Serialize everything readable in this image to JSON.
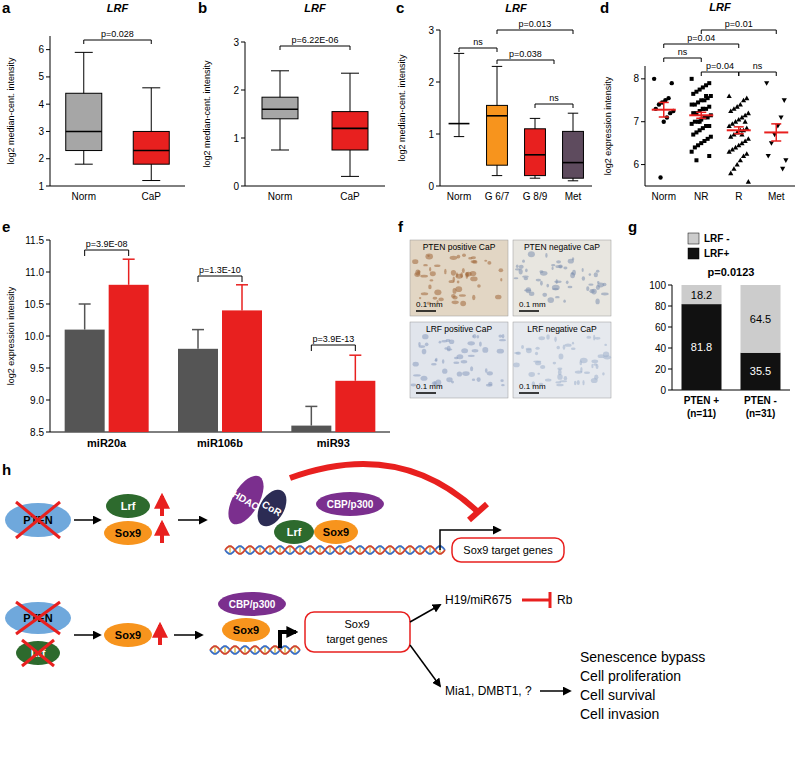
{
  "panel_labels": [
    "a",
    "b",
    "c",
    "d",
    "e",
    "f",
    "g",
    "h"
  ],
  "chart_data": [
    {
      "type": "box",
      "title": "LRF",
      "y_label": "log2 median-cent. intensity",
      "ylim": [
        1,
        6.5
      ],
      "yticks": [
        1,
        2,
        3,
        4,
        5,
        6
      ],
      "annotations": [
        "p=0.028"
      ],
      "boxes": [
        {
          "category": "Norm",
          "color": "#a6a6a6",
          "min": 1.8,
          "q1": 2.3,
          "median": 3.0,
          "q3": 4.4,
          "max": 5.9
        },
        {
          "category": "CaP",
          "color": "#e8201f",
          "min": 1.2,
          "q1": 1.8,
          "median": 2.3,
          "q3": 3.0,
          "max": 4.6
        }
      ]
    },
    {
      "type": "box",
      "title": "LRF",
      "y_label": "log2 median-cent. intensity",
      "ylim": [
        0,
        3
      ],
      "yticks": [
        0,
        1,
        2,
        3
      ],
      "annotations": [
        "p=6.22E-06"
      ],
      "boxes": [
        {
          "category": "Norm",
          "color": "#a6a6a6",
          "min": 0.75,
          "q1": 1.4,
          "median": 1.6,
          "q3": 1.85,
          "max": 2.4
        },
        {
          "category": "CaP",
          "color": "#e8201f",
          "min": 0.2,
          "q1": 0.75,
          "median": 1.2,
          "q3": 1.55,
          "max": 2.35
        }
      ]
    },
    {
      "type": "box",
      "title": "LRF",
      "y_label": "log2 median-cent. intensity",
      "ylim": [
        0,
        3
      ],
      "yticks": [
        0,
        1,
        2,
        3
      ],
      "annotations": [
        "ns",
        "p=0.038",
        "p=0.013",
        "ns"
      ],
      "boxes": [
        {
          "category": "Norm",
          "color": "#ffffff",
          "min": 0.95,
          "q1": 1.2,
          "median": 1.2,
          "q3": 1.2,
          "max": 2.55
        },
        {
          "category": "G 6/7",
          "color": "#f7941d",
          "min": 0.2,
          "q1": 0.4,
          "median": 1.35,
          "q3": 1.55,
          "max": 2.3
        },
        {
          "category": "G 8/9",
          "color": "#e8201f",
          "min": 0.15,
          "q1": 0.2,
          "median": 0.6,
          "q3": 1.1,
          "max": 1.3
        },
        {
          "category": "Met",
          "color": "#5e4b5e",
          "min": 0.1,
          "q1": 0.15,
          "median": 0.45,
          "q3": 1.05,
          "max": 1.4
        }
      ]
    },
    {
      "type": "strip",
      "title": "LRF",
      "y_label": "log2 expression intensity",
      "ylim": [
        5.5,
        8.3
      ],
      "yticks": [
        6,
        7,
        8
      ],
      "annotations": [
        "ns",
        "p=0.04",
        "p=0.04",
        "p=0.01",
        "ns"
      ],
      "groups": [
        {
          "category": "Norm",
          "marker": "circle",
          "color": "#000000",
          "values": [
            8.0,
            7.9,
            7.55,
            7.5,
            7.45,
            7.4,
            7.3,
            7.25,
            7.2,
            7.1,
            7.0,
            5.7
          ],
          "mean": 7.28,
          "sem": 0.17
        },
        {
          "category": "NR",
          "marker": "square",
          "color": "#000000",
          "values": [
            8.0,
            7.9,
            7.85,
            7.8,
            7.75,
            7.7,
            7.65,
            7.6,
            7.55,
            7.5,
            7.5,
            7.45,
            7.4,
            7.4,
            7.35,
            7.3,
            7.3,
            7.25,
            7.2,
            7.2,
            7.15,
            7.1,
            7.1,
            7.05,
            7.0,
            7.0,
            6.95,
            6.9,
            6.9,
            6.85,
            6.8,
            6.75,
            6.7,
            6.65,
            6.6,
            6.55,
            6.5,
            6.45,
            6.4,
            6.3,
            6.2,
            7.6,
            7.3,
            7.0,
            6.1
          ],
          "mean": 7.15,
          "sem": 0.07
        },
        {
          "category": "R",
          "marker": "triangle",
          "color": "#000000",
          "values": [
            7.6,
            7.55,
            7.5,
            7.4,
            7.35,
            7.3,
            7.25,
            7.2,
            7.15,
            7.1,
            7.05,
            7.0,
            6.95,
            6.9,
            6.85,
            6.8,
            6.8,
            6.75,
            6.7,
            6.65,
            6.6,
            6.55,
            6.5,
            6.45,
            6.4,
            6.35,
            6.3,
            6.25,
            6.2,
            6.1,
            6.0,
            5.9,
            5.8,
            5.6,
            7.0,
            6.7
          ],
          "mean": 6.8,
          "sem": 0.08
        },
        {
          "category": "Met",
          "marker": "triangle-down",
          "color": "#000000",
          "values": [
            7.9,
            7.5,
            7.1,
            6.9,
            6.7,
            6.5,
            6.2,
            6.1,
            5.9
          ],
          "mean": 6.75,
          "sem": 0.2
        }
      ],
      "mean_color": "#e8201f"
    },
    {
      "type": "bar",
      "y_label": "log2 expression intensity",
      "ylim": [
        8.5,
        11.5
      ],
      "yticks": [
        8.5,
        {
          "value": 9,
          "label": "9.0"
        },
        9.5,
        {
          "value": 10,
          "label": "10.0"
        },
        10.5,
        {
          "value": 11,
          "label": "11.0"
        },
        11.5
      ],
      "categories": [
        "miR20a",
        "miR106b",
        "miR93"
      ],
      "series": [
        {
          "color": "#555555",
          "values": [
            10.1,
            9.8,
            8.6
          ],
          "errors": [
            0.4,
            0.3,
            0.3
          ]
        },
        {
          "color": "#e8201f",
          "values": [
            10.8,
            10.4,
            9.3
          ],
          "errors": [
            0.4,
            0.4,
            0.4
          ]
        }
      ],
      "annotations": [
        "p=3.9E-08",
        "p=1.3E-10",
        "p=3.9E-13"
      ]
    },
    {
      "type": "bar",
      "stacked": true,
      "data_labels": true,
      "legend": "top",
      "ylim": [
        0,
        100
      ],
      "yticks": [
        0,
        20,
        40,
        60,
        80,
        100
      ],
      "categories": [
        "PTEN +",
        "PTEN -"
      ],
      "group_sizes": [
        "(n=11)",
        "(n=31)"
      ],
      "series": [
        {
          "name": "LRF+",
          "color": "#111111",
          "values": [
            81.8,
            35.5
          ]
        },
        {
          "name": "LRF -",
          "color": "#cccccc",
          "values": [
            18.2,
            64.5
          ]
        }
      ],
      "annotations": [
        "p=0.0123"
      ]
    }
  ],
  "images": [
    {
      "caption": "PTEN positive CaP",
      "scale_bar": "0.1 mm"
    },
    {
      "caption": "PTEN negative CaP",
      "scale_bar": "0.1 mm"
    },
    {
      "caption": "LRF positive CaP",
      "scale_bar": "0.1 mm"
    },
    {
      "caption": "LRF negative CaP",
      "scale_bar": "0.1 mm"
    }
  ],
  "diagram": {
    "row1": {
      "pten": "PTEN",
      "lrf": "Lrf",
      "sox9": "Sox9",
      "hdac": "HDAC",
      "cor": "CoR",
      "complex_lrf": "Lrf",
      "complex_sox9": "Sox9",
      "cbp": "CBP/p300",
      "target": "Sox9 target genes"
    },
    "row2": {
      "pten": "PTEN",
      "lrf": "Lrf",
      "sox9": "Sox9",
      "cbp": "CBP/p300",
      "complex_sox9": "Sox9",
      "target": [
        "Sox9",
        "target genes"
      ],
      "h19": "H19/miR675",
      "rb": "Rb",
      "mia": "Mia1, DMBT1, ?",
      "outcomes": [
        "Senescence bypass",
        "Cell proliferation",
        "Cell survival",
        "Cell invasion"
      ]
    }
  }
}
